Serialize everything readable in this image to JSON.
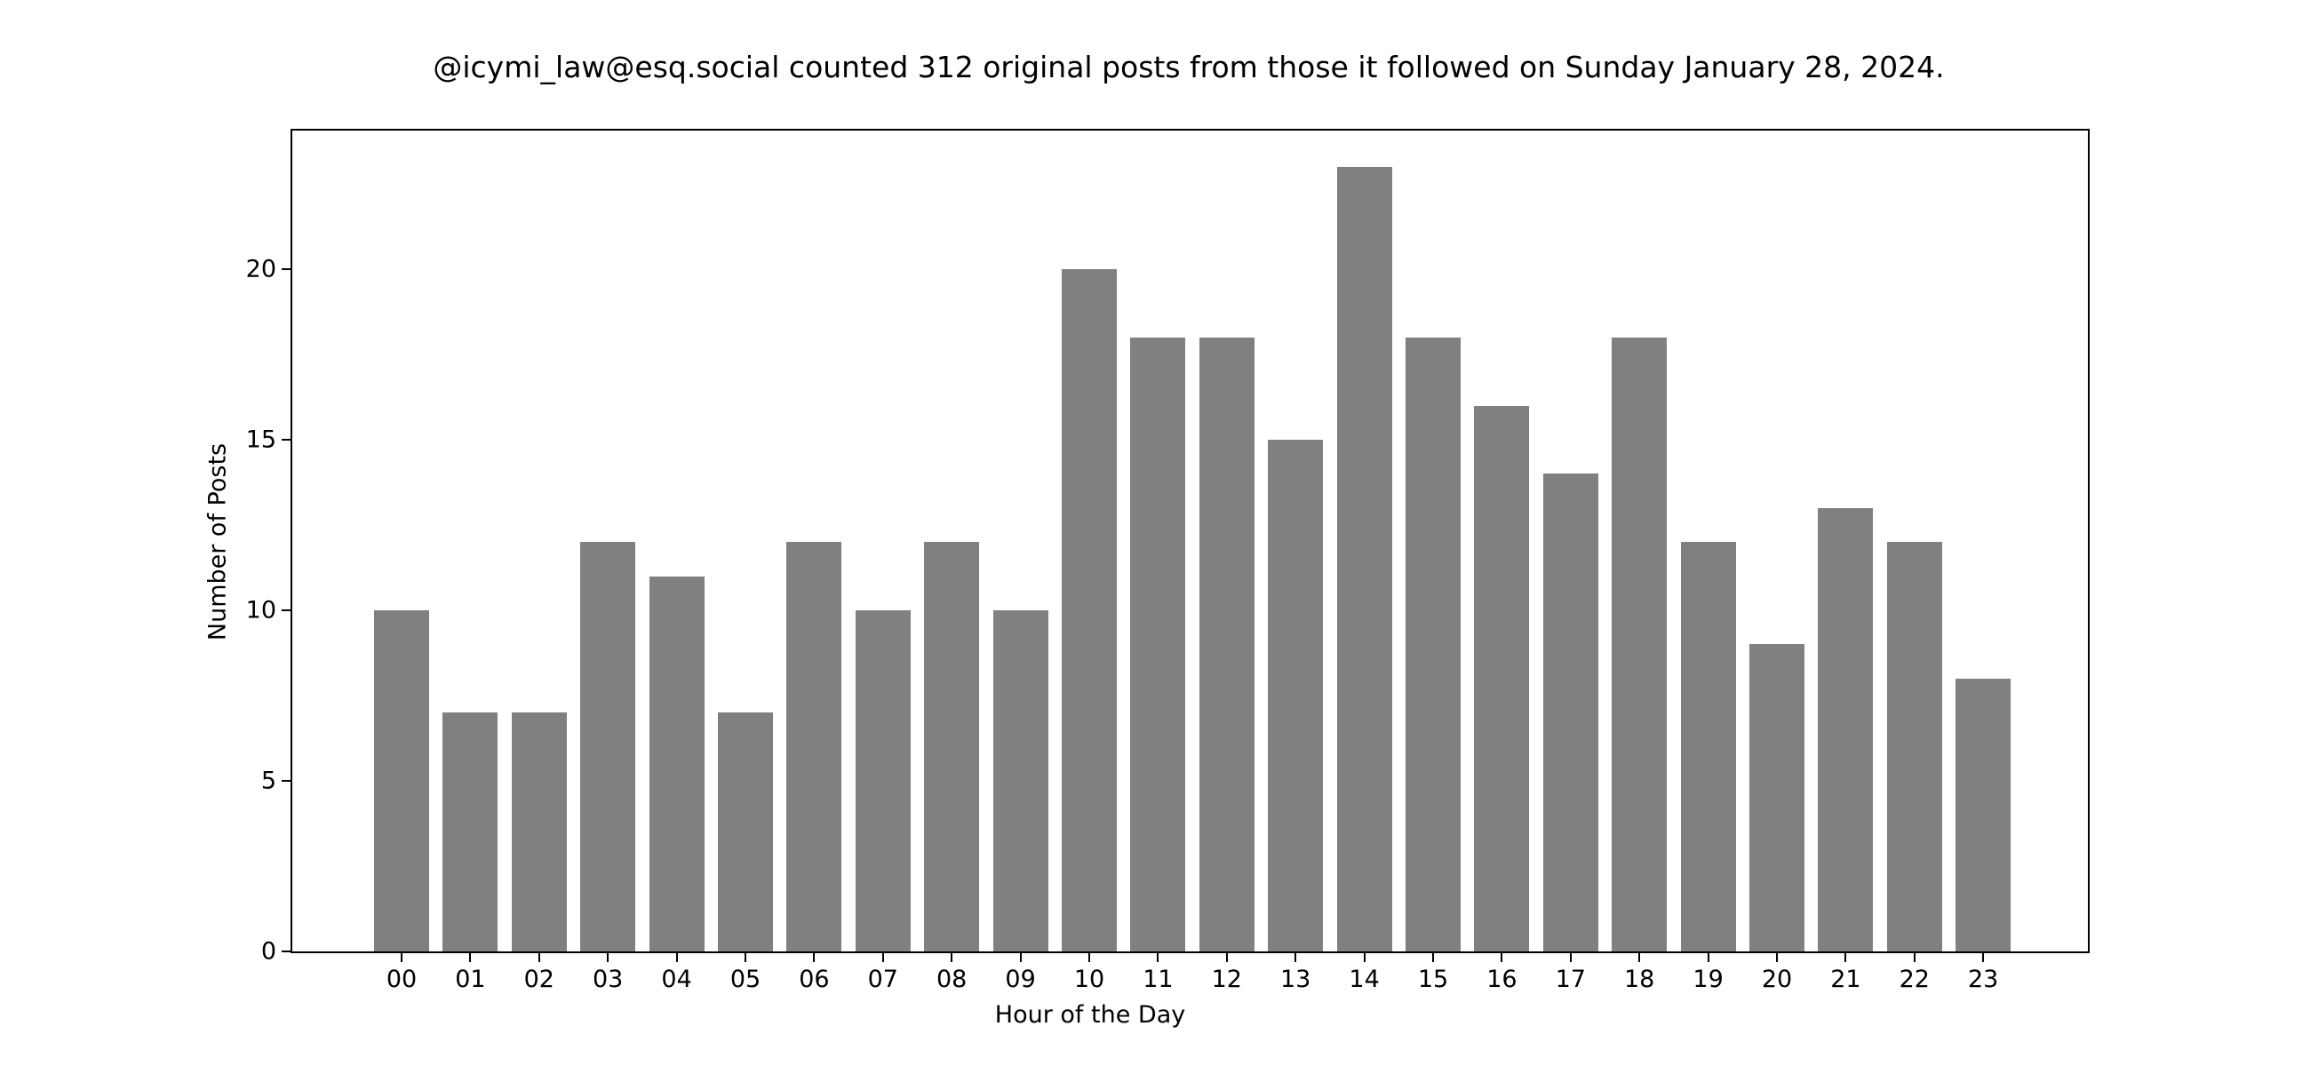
{
  "chart_data": {
    "type": "bar",
    "title": "@icymi_law@esq.social counted 312 original posts from those it followed on Sunday January 28, 2024.",
    "xlabel": "Hour of the Day",
    "ylabel": "Number of Posts",
    "categories": [
      "00",
      "01",
      "02",
      "03",
      "04",
      "05",
      "06",
      "07",
      "08",
      "09",
      "10",
      "11",
      "12",
      "13",
      "14",
      "15",
      "16",
      "17",
      "18",
      "19",
      "20",
      "21",
      "22",
      "23"
    ],
    "values": [
      10,
      7,
      7,
      12,
      11,
      7,
      12,
      10,
      12,
      10,
      20,
      18,
      18,
      15,
      23,
      18,
      16,
      14,
      18,
      12,
      9,
      13,
      12,
      8
    ],
    "yticks": [
      0,
      5,
      10,
      15,
      20
    ],
    "ylim": [
      0,
      24.15
    ],
    "grid": false,
    "legend": null,
    "bar_color": "#808080",
    "total_posts": 312
  }
}
